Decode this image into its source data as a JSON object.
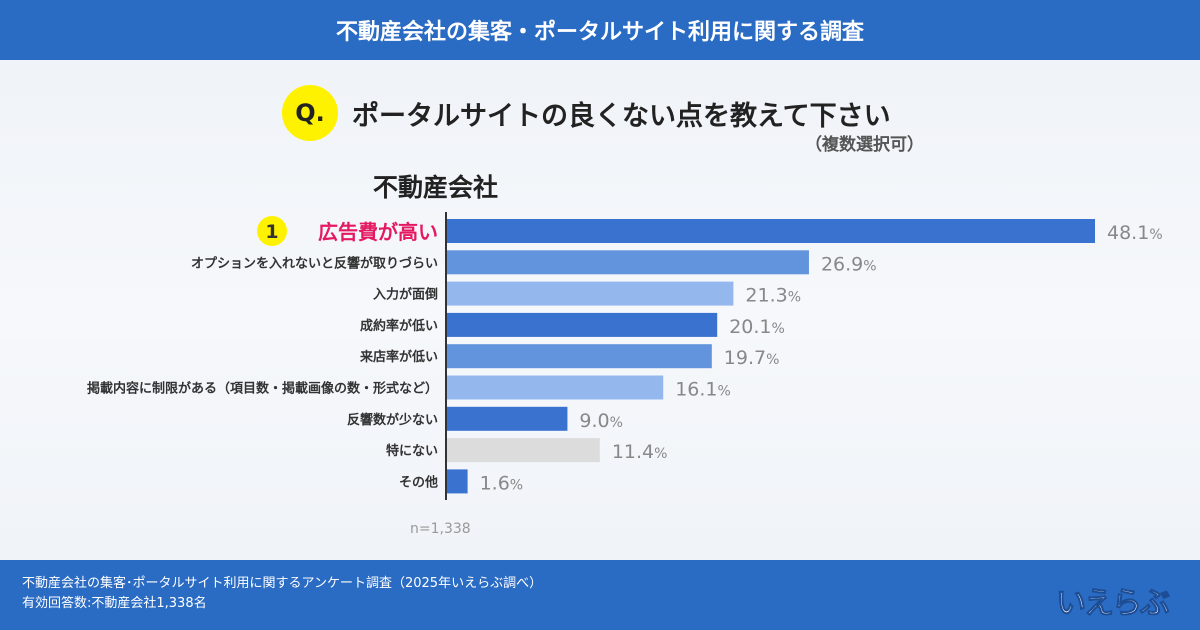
{
  "header": {
    "title": "不動産会社の集客・ポータルサイト利用に関する調査"
  },
  "question": {
    "badge": "Q.",
    "text": "ポータルサイトの良くない点を教えて下さい",
    "note": "（複数選択可）"
  },
  "group_label": "不動産会社",
  "chart_data": {
    "type": "bar",
    "orientation": "horizontal",
    "title": "ポータルサイトの良くない点を教えて下さい",
    "categories": [
      "広告費が高い",
      "オプションを入れないと反響が取りづらい",
      "入力が面倒",
      "成約率が低い",
      "来店率が低い",
      "掲載内容に制限がある（項目数・掲載画像の数・形式など）",
      "反響数が少ない",
      "特にない",
      "その他"
    ],
    "values": [
      48.1,
      26.9,
      21.3,
      20.1,
      19.7,
      16.1,
      9.0,
      11.4,
      1.6
    ],
    "value_labels": [
      "48.1",
      "26.9",
      "21.3",
      "20.1",
      "19.7",
      "16.1",
      "9.0",
      "11.4",
      "1.6"
    ],
    "unit": "%",
    "rank_badge": "1",
    "sample": "n=1,338",
    "colors": [
      "#3a72cf",
      "#6194dc",
      "#94b8ee",
      "#3a72cf",
      "#6194dc",
      "#94b8ee",
      "#3a72cf",
      "#dcdcdc",
      "#3a72cf"
    ],
    "highlight_color": "#e5195f",
    "xlim": [
      0,
      50
    ]
  },
  "footer": {
    "line1": "不動産会社の集客･ポータルサイト利用に関するアンケート調査（2025年いえらぶ調べ）",
    "line2": "有効回答数:不動産会社1,338名"
  },
  "logo": "いえらぶ"
}
